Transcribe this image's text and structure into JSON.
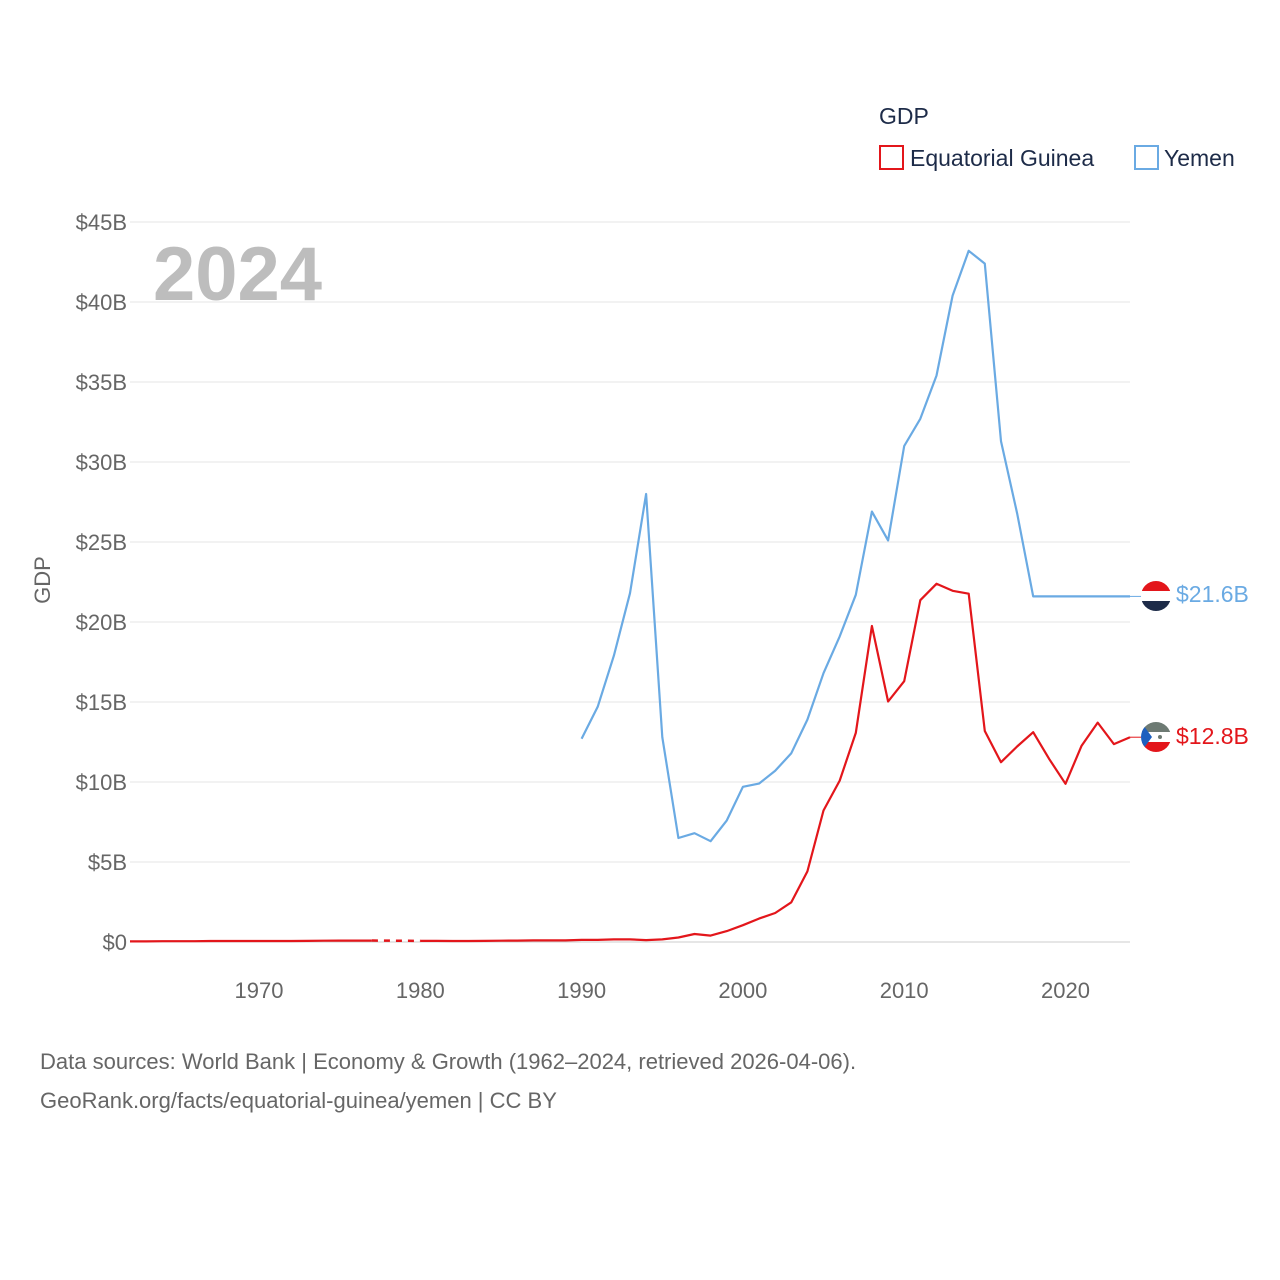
{
  "chart_data": {
    "type": "line",
    "year_label": "2024",
    "ylabel": "GDP",
    "legend_title": "GDP",
    "ylim": [
      0,
      45
    ],
    "xlim": [
      1962,
      2024
    ],
    "y_ticks": [
      {
        "v": 0,
        "label": "$0"
      },
      {
        "v": 5,
        "label": "$5B"
      },
      {
        "v": 10,
        "label": "$10B"
      },
      {
        "v": 15,
        "label": "$15B"
      },
      {
        "v": 20,
        "label": "$20B"
      },
      {
        "v": 25,
        "label": "$25B"
      },
      {
        "v": 30,
        "label": "$30B"
      },
      {
        "v": 35,
        "label": "$35B"
      },
      {
        "v": 40,
        "label": "$40B"
      },
      {
        "v": 45,
        "label": "$45B"
      }
    ],
    "x_ticks": [
      {
        "v": 1970,
        "label": "1970"
      },
      {
        "v": 1980,
        "label": "1980"
      },
      {
        "v": 1990,
        "label": "1990"
      },
      {
        "v": 2000,
        "label": "2000"
      },
      {
        "v": 2010,
        "label": "2010"
      },
      {
        "v": 2020,
        "label": "2020"
      }
    ],
    "series": [
      {
        "name": "Equatorial Guinea",
        "color": "#e3161b",
        "end_label": "$12.8B",
        "gap": [
          1977,
          1980
        ],
        "x": [
          1962,
          1963,
          1964,
          1965,
          1966,
          1967,
          1968,
          1969,
          1970,
          1971,
          1972,
          1973,
          1974,
          1975,
          1976,
          1977,
          1980,
          1981,
          1982,
          1983,
          1984,
          1985,
          1986,
          1987,
          1988,
          1989,
          1990,
          1991,
          1992,
          1993,
          1994,
          1995,
          1996,
          1997,
          1998,
          1999,
          2000,
          2001,
          2002,
          2003,
          2004,
          2005,
          2006,
          2007,
          2008,
          2009,
          2010,
          2011,
          2012,
          2013,
          2014,
          2015,
          2016,
          2017,
          2018,
          2019,
          2020,
          2021,
          2022,
          2023,
          2024
        ],
        "values": [
          0.04,
          0.04,
          0.05,
          0.05,
          0.05,
          0.06,
          0.06,
          0.06,
          0.06,
          0.06,
          0.06,
          0.07,
          0.08,
          0.09,
          0.09,
          0.09,
          0.07,
          0.07,
          0.06,
          0.06,
          0.07,
          0.08,
          0.09,
          0.1,
          0.1,
          0.1,
          0.13,
          0.13,
          0.16,
          0.16,
          0.12,
          0.16,
          0.28,
          0.5,
          0.4,
          0.68,
          1.05,
          1.46,
          1.81,
          2.48,
          4.41,
          8.22,
          10.09,
          13.07,
          19.75,
          15.03,
          16.3,
          21.36,
          22.39,
          21.95,
          21.77,
          13.19,
          11.24,
          12.22,
          13.11,
          11.42,
          9.89,
          12.27,
          13.71,
          12.37,
          12.8
        ]
      },
      {
        "name": "Yemen",
        "color": "#6aaae3",
        "end_label": "$21.6B",
        "x": [
          1990,
          1991,
          1992,
          1993,
          1994,
          1995,
          1996,
          1997,
          1998,
          1999,
          2000,
          2001,
          2002,
          2003,
          2004,
          2005,
          2006,
          2007,
          2008,
          2009,
          2010,
          2011,
          2012,
          2013,
          2014,
          2015,
          2016,
          2017,
          2018,
          2019,
          2020,
          2021,
          2022,
          2023,
          2024
        ],
        "values": [
          12.7,
          14.7,
          17.9,
          21.8,
          28.0,
          12.8,
          6.5,
          6.8,
          6.3,
          7.6,
          9.7,
          9.9,
          10.7,
          11.8,
          13.9,
          16.8,
          19.1,
          21.7,
          26.9,
          25.1,
          31.0,
          32.7,
          35.4,
          40.4,
          43.2,
          42.4,
          31.3,
          26.8,
          21.6,
          21.6,
          21.6,
          21.6,
          21.6,
          21.6,
          21.6
        ]
      }
    ]
  },
  "source": {
    "line1": "Data sources: World Bank | Economy & Growth (1962–2024, retrieved 2026-04-06).",
    "line2": "GeoRank.org/facts/equatorial-guinea/yemen | CC BY"
  }
}
